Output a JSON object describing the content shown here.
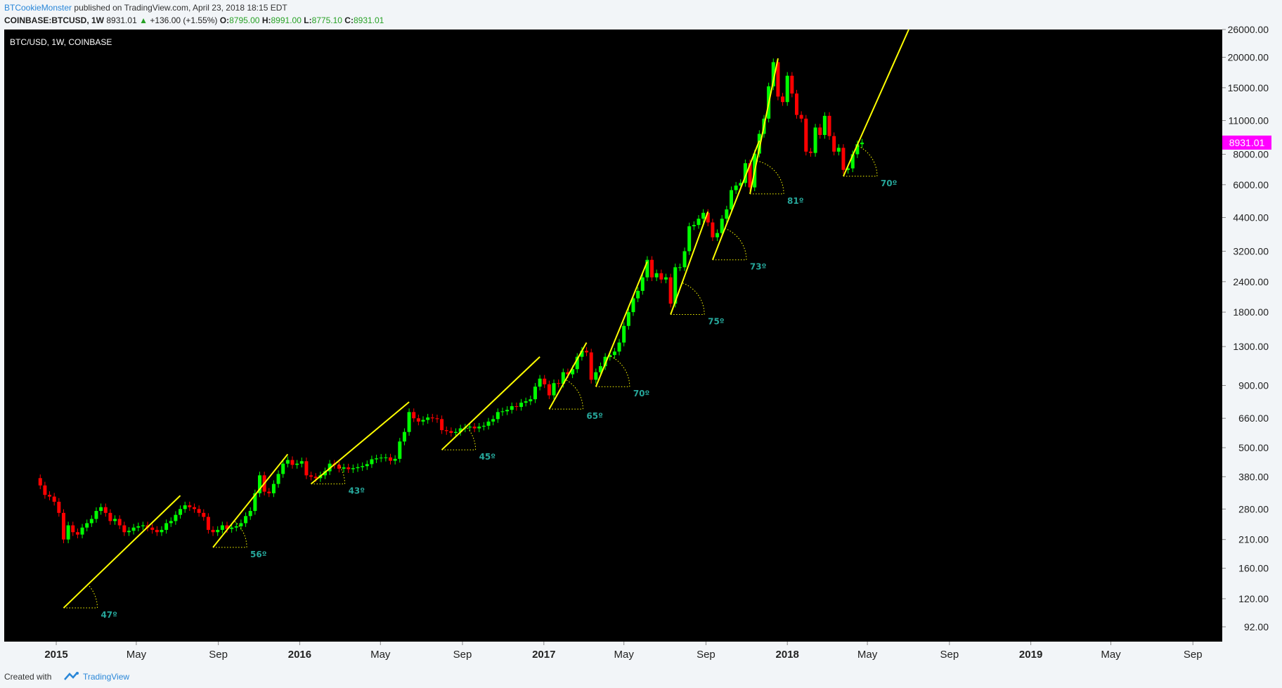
{
  "header": {
    "author": "BTCookieMonster",
    "published_text": "published on TradingView.com, April 23, 2018 18:15 EDT",
    "symbol": "COINBASE:BTCUSD, 1W",
    "last": "8931.01",
    "change": "+136.00 (+1.55%)",
    "open_label": "O:",
    "open": "8795.00",
    "high_label": "H:",
    "high": "8991.00",
    "low_label": "L:",
    "low": "8775.10",
    "close_label": "C:",
    "close": "8931.01"
  },
  "footer": {
    "created_with": "Created with",
    "brand": "TradingView"
  },
  "colors": {
    "background": "#000000",
    "bull": "#00ff00",
    "bear": "#ff0000",
    "trend": "#ffff00",
    "angle_label": "#26a69a",
    "price_label_bg": "#ff00ff",
    "axis_text": "#222222"
  },
  "chart_data": {
    "type": "candlestick",
    "title": "BTC/USD, 1W, COINBASE",
    "scale": "log",
    "ylim": [
      80,
      26000
    ],
    "xlim": [
      "2014-10-15",
      "2019-10-15"
    ],
    "last_price_label": "8931.01",
    "last_price": 8931.01,
    "y_ticks": [
      92,
      120,
      160,
      210,
      280,
      380,
      500,
      660,
      900,
      1300,
      1800,
      2400,
      3200,
      4400,
      6000,
      8000,
      11000,
      15000,
      20000,
      26000
    ],
    "y_tick_labels": [
      "92.00",
      "120.00",
      "160.00",
      "210.00",
      "280.00",
      "380.00",
      "500.00",
      "660.00",
      "900.00",
      "1300.00",
      "1800.00",
      "2400.00",
      "3200.00",
      "4400.00",
      "6000.00",
      "8000.00",
      "11000.00",
      "15000.00",
      "20000.00",
      "26000.00"
    ],
    "x_ticks": [
      {
        "date": "2015-01-01",
        "label": "2015",
        "bold": true
      },
      {
        "date": "2015-05-01",
        "label": "May",
        "bold": false
      },
      {
        "date": "2015-09-01",
        "label": "Sep",
        "bold": false
      },
      {
        "date": "2016-01-01",
        "label": "2016",
        "bold": true
      },
      {
        "date": "2016-05-01",
        "label": "May",
        "bold": false
      },
      {
        "date": "2016-09-01",
        "label": "Sep",
        "bold": false
      },
      {
        "date": "2017-01-01",
        "label": "2017",
        "bold": true
      },
      {
        "date": "2017-05-01",
        "label": "May",
        "bold": false
      },
      {
        "date": "2017-09-01",
        "label": "Sep",
        "bold": false
      },
      {
        "date": "2018-01-01",
        "label": "2018",
        "bold": true
      },
      {
        "date": "2018-05-01",
        "label": "May",
        "bold": false
      },
      {
        "date": "2018-09-01",
        "label": "Sep",
        "bold": false
      },
      {
        "date": "2019-01-01",
        "label": "2019",
        "bold": true
      },
      {
        "date": "2019-05-01",
        "label": "May",
        "bold": false
      },
      {
        "date": "2019-09-01",
        "label": "Sep",
        "bold": false
      }
    ],
    "weekly_close": [
      [
        "2014-12-01",
        375
      ],
      [
        "2014-12-08",
        350
      ],
      [
        "2014-12-15",
        320
      ],
      [
        "2014-12-22",
        315
      ],
      [
        "2014-12-29",
        300
      ],
      [
        "2015-01-05",
        270
      ],
      [
        "2015-01-12",
        210
      ],
      [
        "2015-01-19",
        240
      ],
      [
        "2015-01-26",
        225
      ],
      [
        "2015-02-02",
        220
      ],
      [
        "2015-02-09",
        235
      ],
      [
        "2015-02-16",
        245
      ],
      [
        "2015-02-23",
        255
      ],
      [
        "2015-03-02",
        275
      ],
      [
        "2015-03-09",
        285
      ],
      [
        "2015-03-16",
        270
      ],
      [
        "2015-03-23",
        250
      ],
      [
        "2015-03-30",
        255
      ],
      [
        "2015-04-06",
        240
      ],
      [
        "2015-04-13",
        225
      ],
      [
        "2015-04-20",
        228
      ],
      [
        "2015-04-27",
        235
      ],
      [
        "2015-05-04",
        238
      ],
      [
        "2015-05-11",
        240
      ],
      [
        "2015-05-18",
        235
      ],
      [
        "2015-05-25",
        230
      ],
      [
        "2015-06-01",
        225
      ],
      [
        "2015-06-08",
        230
      ],
      [
        "2015-06-15",
        245
      ],
      [
        "2015-06-22",
        250
      ],
      [
        "2015-06-29",
        265
      ],
      [
        "2015-07-06",
        280
      ],
      [
        "2015-07-13",
        290
      ],
      [
        "2015-07-20",
        285
      ],
      [
        "2015-07-27",
        280
      ],
      [
        "2015-08-03",
        270
      ],
      [
        "2015-08-10",
        260
      ],
      [
        "2015-08-17",
        230
      ],
      [
        "2015-08-24",
        225
      ],
      [
        "2015-08-31",
        230
      ],
      [
        "2015-09-07",
        240
      ],
      [
        "2015-09-14",
        232
      ],
      [
        "2015-09-21",
        235
      ],
      [
        "2015-09-28",
        238
      ],
      [
        "2015-10-05",
        245
      ],
      [
        "2015-10-12",
        262
      ],
      [
        "2015-10-19",
        275
      ],
      [
        "2015-10-26",
        325
      ],
      [
        "2015-11-02",
        385
      ],
      [
        "2015-11-09",
        330
      ],
      [
        "2015-11-16",
        325
      ],
      [
        "2015-11-23",
        355
      ],
      [
        "2015-11-30",
        390
      ],
      [
        "2015-12-07",
        430
      ],
      [
        "2015-12-14",
        445
      ],
      [
        "2015-12-21",
        425
      ],
      [
        "2015-12-28",
        430
      ],
      [
        "2016-01-04",
        440
      ],
      [
        "2016-01-11",
        385
      ],
      [
        "2016-01-18",
        380
      ],
      [
        "2016-01-25",
        375
      ],
      [
        "2016-02-01",
        385
      ],
      [
        "2016-02-08",
        400
      ],
      [
        "2016-02-15",
        430
      ],
      [
        "2016-02-22",
        425
      ],
      [
        "2016-02-29",
        410
      ],
      [
        "2016-03-07",
        415
      ],
      [
        "2016-03-14",
        408
      ],
      [
        "2016-03-21",
        412
      ],
      [
        "2016-03-28",
        416
      ],
      [
        "2016-04-04",
        420
      ],
      [
        "2016-04-11",
        428
      ],
      [
        "2016-04-18",
        448
      ],
      [
        "2016-04-25",
        452
      ],
      [
        "2016-05-02",
        455
      ],
      [
        "2016-05-09",
        456
      ],
      [
        "2016-05-16",
        442
      ],
      [
        "2016-05-23",
        450
      ],
      [
        "2016-05-30",
        530
      ],
      [
        "2016-06-06",
        580
      ],
      [
        "2016-06-13",
        700
      ],
      [
        "2016-06-20",
        660
      ],
      [
        "2016-06-27",
        640
      ],
      [
        "2016-07-04",
        650
      ],
      [
        "2016-07-11",
        665
      ],
      [
        "2016-07-18",
        660
      ],
      [
        "2016-07-25",
        655
      ],
      [
        "2016-08-01",
        590
      ],
      [
        "2016-08-08",
        585
      ],
      [
        "2016-08-15",
        575
      ],
      [
        "2016-08-22",
        580
      ],
      [
        "2016-08-29",
        600
      ],
      [
        "2016-09-05",
        605
      ],
      [
        "2016-09-12",
        610
      ],
      [
        "2016-09-19",
        600
      ],
      [
        "2016-09-26",
        610
      ],
      [
        "2016-10-03",
        615
      ],
      [
        "2016-10-10",
        640
      ],
      [
        "2016-10-17",
        655
      ],
      [
        "2016-10-24",
        700
      ],
      [
        "2016-10-31",
        705
      ],
      [
        "2016-11-07",
        715
      ],
      [
        "2016-11-14",
        740
      ],
      [
        "2016-11-21",
        735
      ],
      [
        "2016-11-28",
        765
      ],
      [
        "2016-12-05",
        775
      ],
      [
        "2016-12-12",
        790
      ],
      [
        "2016-12-19",
        890
      ],
      [
        "2016-12-26",
        960
      ],
      [
        "2017-01-02",
        910
      ],
      [
        "2017-01-09",
        820
      ],
      [
        "2017-01-16",
        920
      ],
      [
        "2017-01-23",
        915
      ],
      [
        "2017-01-30",
        1020
      ],
      [
        "2017-02-06",
        1000
      ],
      [
        "2017-02-13",
        1050
      ],
      [
        "2017-02-20",
        1180
      ],
      [
        "2017-02-27",
        1250
      ],
      [
        "2017-03-06",
        1230
      ],
      [
        "2017-03-13",
        950
      ],
      [
        "2017-03-20",
        1020
      ],
      [
        "2017-03-27",
        1080
      ],
      [
        "2017-04-03",
        1180
      ],
      [
        "2017-04-10",
        1200
      ],
      [
        "2017-04-17",
        1240
      ],
      [
        "2017-04-24",
        1350
      ],
      [
        "2017-05-01",
        1580
      ],
      [
        "2017-05-08",
        1800
      ],
      [
        "2017-05-15",
        2050
      ],
      [
        "2017-05-22",
        2200
      ],
      [
        "2017-05-29",
        2500
      ],
      [
        "2017-06-05",
        2950
      ],
      [
        "2017-06-12",
        2500
      ],
      [
        "2017-06-19",
        2600
      ],
      [
        "2017-06-26",
        2450
      ],
      [
        "2017-07-03",
        2500
      ],
      [
        "2017-07-10",
        1950
      ],
      [
        "2017-07-17",
        2750
      ],
      [
        "2017-07-24",
        2750
      ],
      [
        "2017-07-31",
        3200
      ],
      [
        "2017-08-07",
        4050
      ],
      [
        "2017-08-14",
        4100
      ],
      [
        "2017-08-21",
        4350
      ],
      [
        "2017-08-28",
        4600
      ],
      [
        "2017-09-04",
        4200
      ],
      [
        "2017-09-11",
        3650
      ],
      [
        "2017-09-18",
        3800
      ],
      [
        "2017-09-25",
        4350
      ],
      [
        "2017-10-02",
        4750
      ],
      [
        "2017-10-09",
        5700
      ],
      [
        "2017-10-16",
        5950
      ],
      [
        "2017-10-23",
        6100
      ],
      [
        "2017-10-30",
        7350
      ],
      [
        "2017-11-06",
        5850
      ],
      [
        "2017-11-13",
        8050
      ],
      [
        "2017-11-20",
        9700
      ],
      [
        "2017-11-27",
        11200
      ],
      [
        "2017-12-04",
        15200
      ],
      [
        "2017-12-11",
        19100
      ],
      [
        "2017-12-18",
        13800
      ],
      [
        "2017-12-25",
        13100
      ],
      [
        "2018-01-01",
        16800
      ],
      [
        "2018-01-08",
        14200
      ],
      [
        "2018-01-15",
        11600
      ],
      [
        "2018-01-22",
        11200
      ],
      [
        "2018-01-29",
        8200
      ],
      [
        "2018-02-05",
        8100
      ],
      [
        "2018-02-12",
        10300
      ],
      [
        "2018-02-19",
        9600
      ],
      [
        "2018-02-26",
        11500
      ],
      [
        "2018-03-05",
        9500
      ],
      [
        "2018-03-12",
        8200
      ],
      [
        "2018-03-19",
        8500
      ],
      [
        "2018-03-26",
        6900
      ],
      [
        "2018-04-02",
        7000
      ],
      [
        "2018-04-09",
        8000
      ],
      [
        "2018-04-16",
        8795
      ],
      [
        "2018-04-23",
        8931
      ]
    ],
    "trendlines": [
      {
        "from": [
          "2015-01-12",
          110
        ],
        "to": [
          "2015-07-06",
          318
        ],
        "angle_label": "47º"
      },
      {
        "from": [
          "2015-08-24",
          195
        ],
        "to": [
          "2015-12-14",
          470
        ],
        "angle_label": "56º"
      },
      {
        "from": [
          "2016-01-18",
          355
        ],
        "to": [
          "2016-06-13",
          770
        ],
        "angle_label": "43º"
      },
      {
        "from": [
          "2016-08-01",
          490
        ],
        "to": [
          "2016-12-26",
          1180
        ],
        "angle_label": "45º"
      },
      {
        "from": [
          "2017-01-09",
          720
        ],
        "to": [
          "2017-03-06",
          1350
        ],
        "angle_label": "65º"
      },
      {
        "from": [
          "2017-03-20",
          890
        ],
        "to": [
          "2017-06-05",
          2900
        ],
        "angle_label": "70º"
      },
      {
        "from": [
          "2017-07-10",
          1760
        ],
        "to": [
          "2017-09-04",
          4650
        ],
        "angle_label": "75º"
      },
      {
        "from": [
          "2017-09-11",
          2950
        ],
        "to": [
          "2017-11-20",
          9100
        ],
        "angle_label": "73º"
      },
      {
        "from": [
          "2017-11-06",
          5500
        ],
        "to": [
          "2017-12-18",
          19800
        ],
        "angle_label": "81º"
      },
      {
        "from": [
          "2018-03-26",
          6500
        ],
        "to": [
          "2018-07-02",
          26000
        ],
        "angle_label": "70º"
      }
    ]
  }
}
